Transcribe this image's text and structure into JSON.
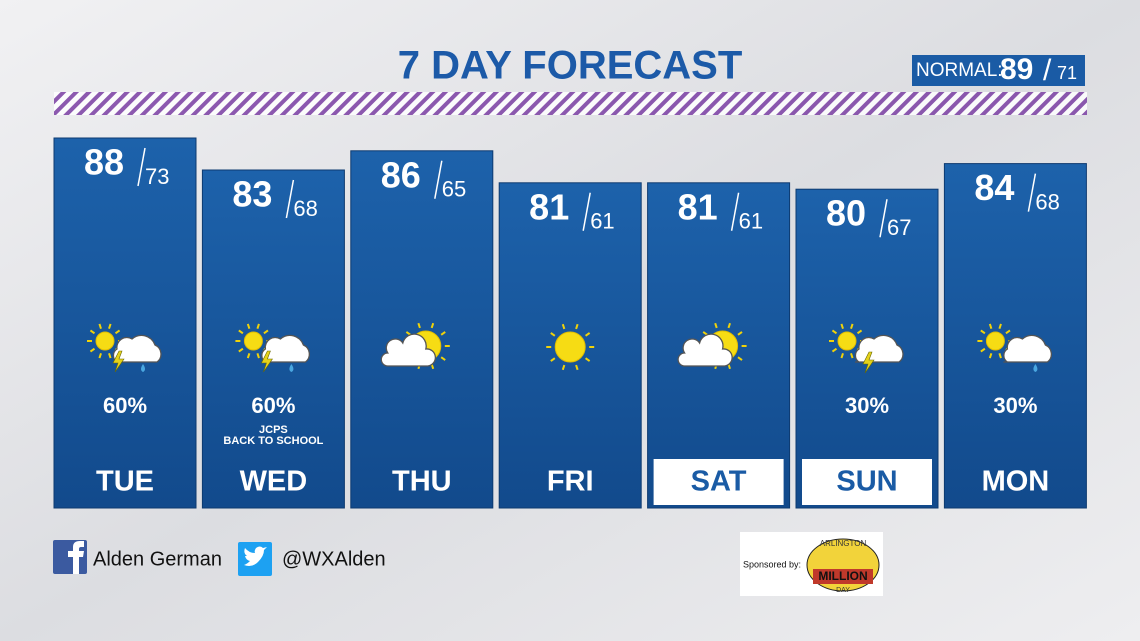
{
  "header": {
    "title": "7 DAY FORECAST",
    "normal_label": "NORMAL:",
    "normal_high": 89,
    "normal_low": 71
  },
  "days": [
    {
      "day": "TUE",
      "high": 88,
      "low": 73,
      "icon": "storm",
      "precip": "60%"
    },
    {
      "day": "WED",
      "high": 83,
      "low": 68,
      "icon": "storm",
      "precip": "60%",
      "note": [
        "JCPS",
        "BACK TO SCHOOL"
      ]
    },
    {
      "day": "THU",
      "high": 86,
      "low": 65,
      "icon": "partly"
    },
    {
      "day": "FRI",
      "high": 81,
      "low": 61,
      "icon": "sunny"
    },
    {
      "day": "SAT",
      "high": 81,
      "low": 61,
      "icon": "partly",
      "highlight": true
    },
    {
      "day": "SUN",
      "high": 80,
      "low": 67,
      "icon": "lightning",
      "precip": "30%",
      "highlight": true
    },
    {
      "day": "MON",
      "high": 84,
      "low": 68,
      "icon": "rain",
      "precip": "30%"
    }
  ],
  "footer": {
    "facebook": "Alden German",
    "twitter": "@WXAlden",
    "sponsor": "Sponsored by:",
    "logo": [
      "ARLINGTON",
      "MILLION",
      "DAY"
    ]
  }
}
